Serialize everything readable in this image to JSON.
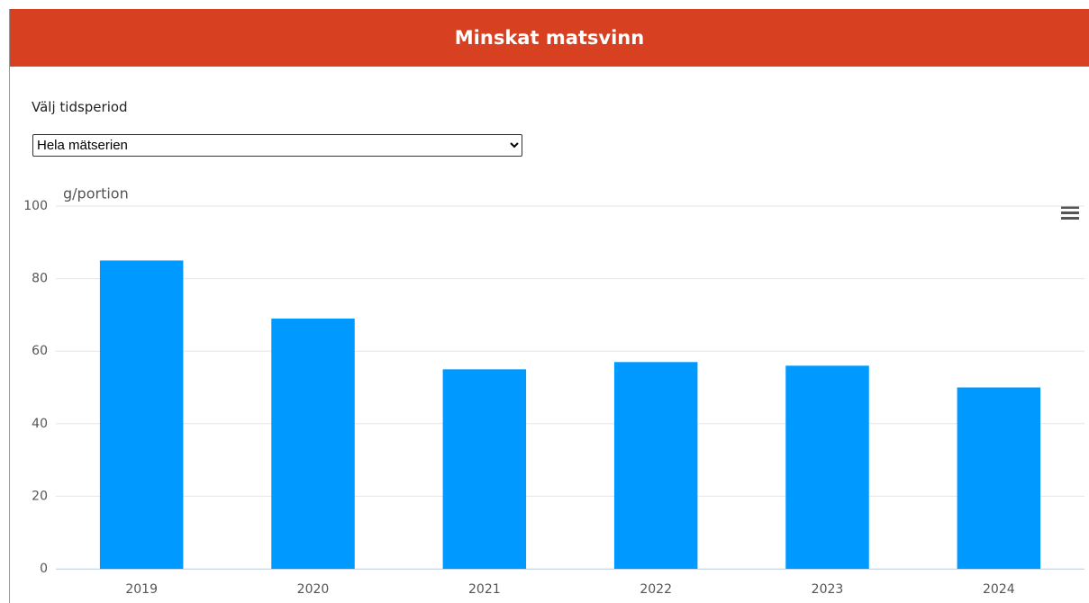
{
  "header": {
    "title": "Minskat matsvinn"
  },
  "controls": {
    "label": "Välj tidsperiod",
    "selected": "Hela mätserien"
  },
  "chart_data": {
    "type": "bar",
    "y_label": "g/portion",
    "categories": [
      "2019",
      "2020",
      "2021",
      "2022",
      "2023",
      "2024"
    ],
    "values": [
      85,
      69,
      55,
      57,
      56,
      50
    ],
    "color": "#0099ff",
    "ylim": [
      0,
      100
    ],
    "yticks": [
      0,
      20,
      40,
      60,
      80,
      100
    ],
    "grid": true
  }
}
